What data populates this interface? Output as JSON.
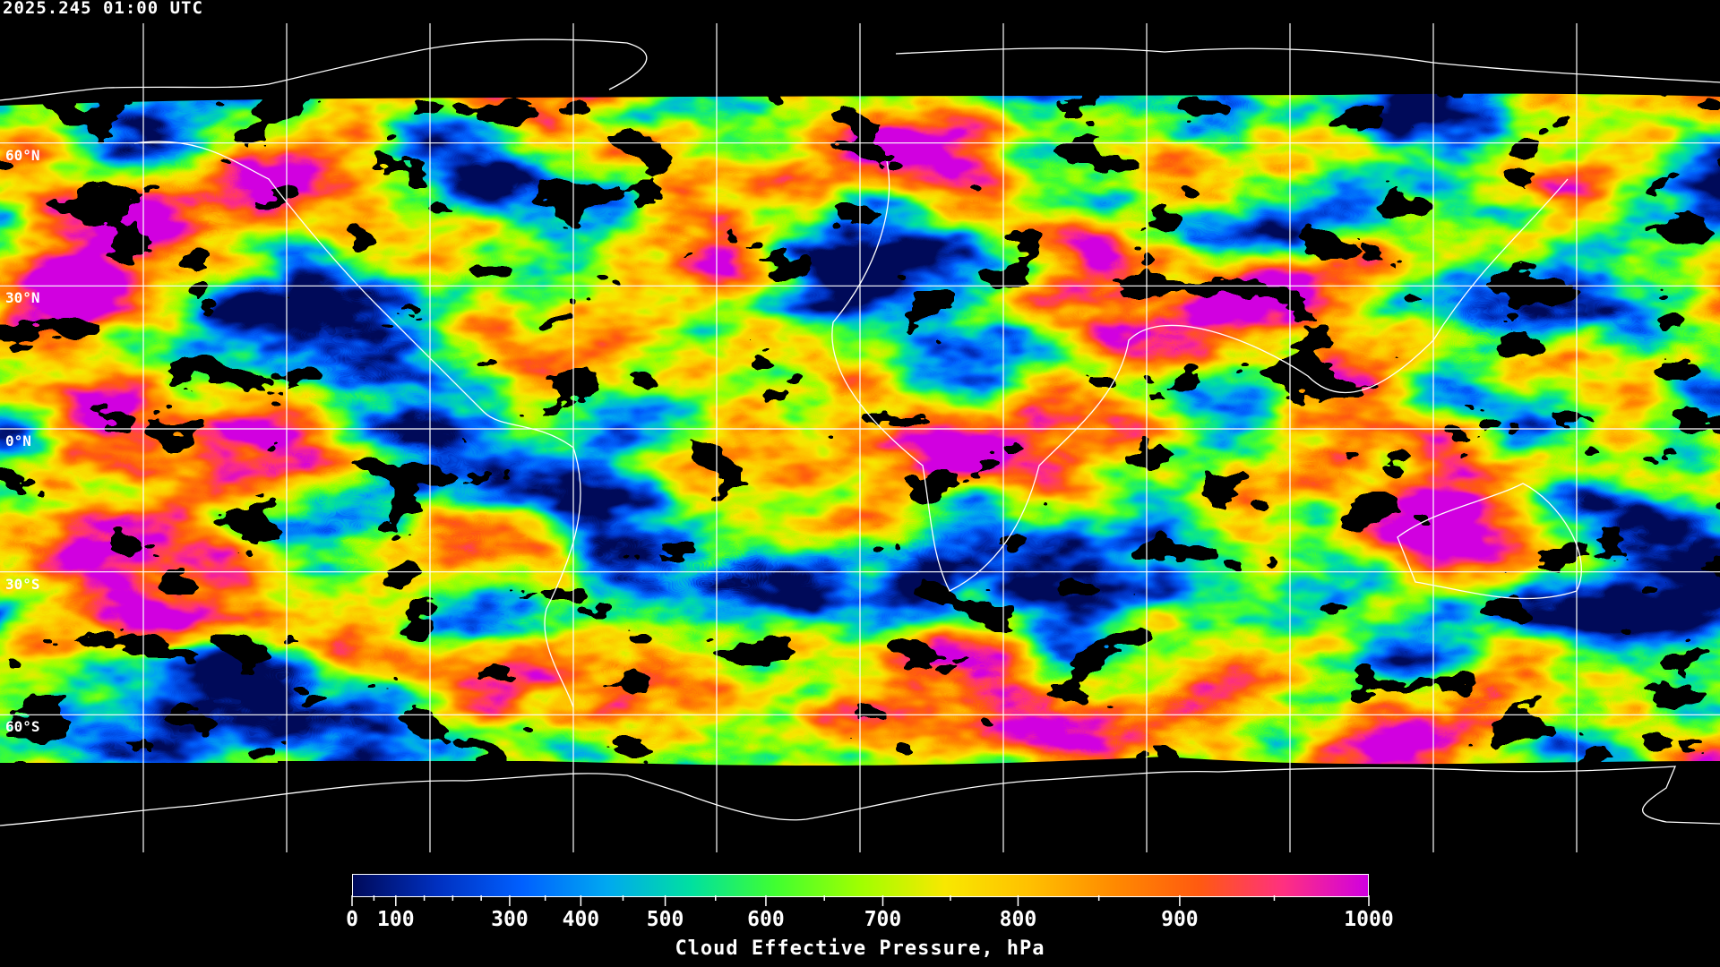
{
  "header": {
    "timestamp": "2025.245 01:00 UTC"
  },
  "map": {
    "projection": "equirectangular",
    "lon_range": [
      -180,
      180
    ],
    "lat_range": [
      -90,
      90
    ],
    "data_lat_extent": [
      -70,
      70
    ],
    "gridlines_lon": [
      -150,
      -120,
      -90,
      -60,
      -30,
      0,
      30,
      60,
      90,
      120,
      150
    ],
    "gridlines_lat": [
      60,
      30,
      0,
      -30,
      -60
    ],
    "lat_labels": [
      "60°N",
      "30°N",
      "0°N",
      "30°S",
      "60°S"
    ],
    "grid_color": "#ffffff",
    "coastline_color": "#ffffff",
    "no_data_color": "#000000"
  },
  "colorbar": {
    "title": "Cloud Effective Pressure, hPa",
    "tick_labels": [
      "0",
      "100",
      "300",
      "400",
      "500",
      "600",
      "700",
      "800",
      "900",
      "1000"
    ],
    "tick_values": [
      0,
      100,
      300,
      400,
      500,
      600,
      700,
      800,
      900,
      1000
    ],
    "minor_tick_values": [
      50,
      150,
      200,
      250,
      350,
      450,
      550,
      650,
      750,
      850,
      950
    ],
    "colormap": [
      "#000a5a",
      "#0030c0",
      "#0060ff",
      "#00a8f0",
      "#00e0a0",
      "#40ff30",
      "#a0ff00",
      "#f8e800",
      "#ffc000",
      "#ff8a00",
      "#ff5a10",
      "#ff3080",
      "#d000e0"
    ]
  }
}
